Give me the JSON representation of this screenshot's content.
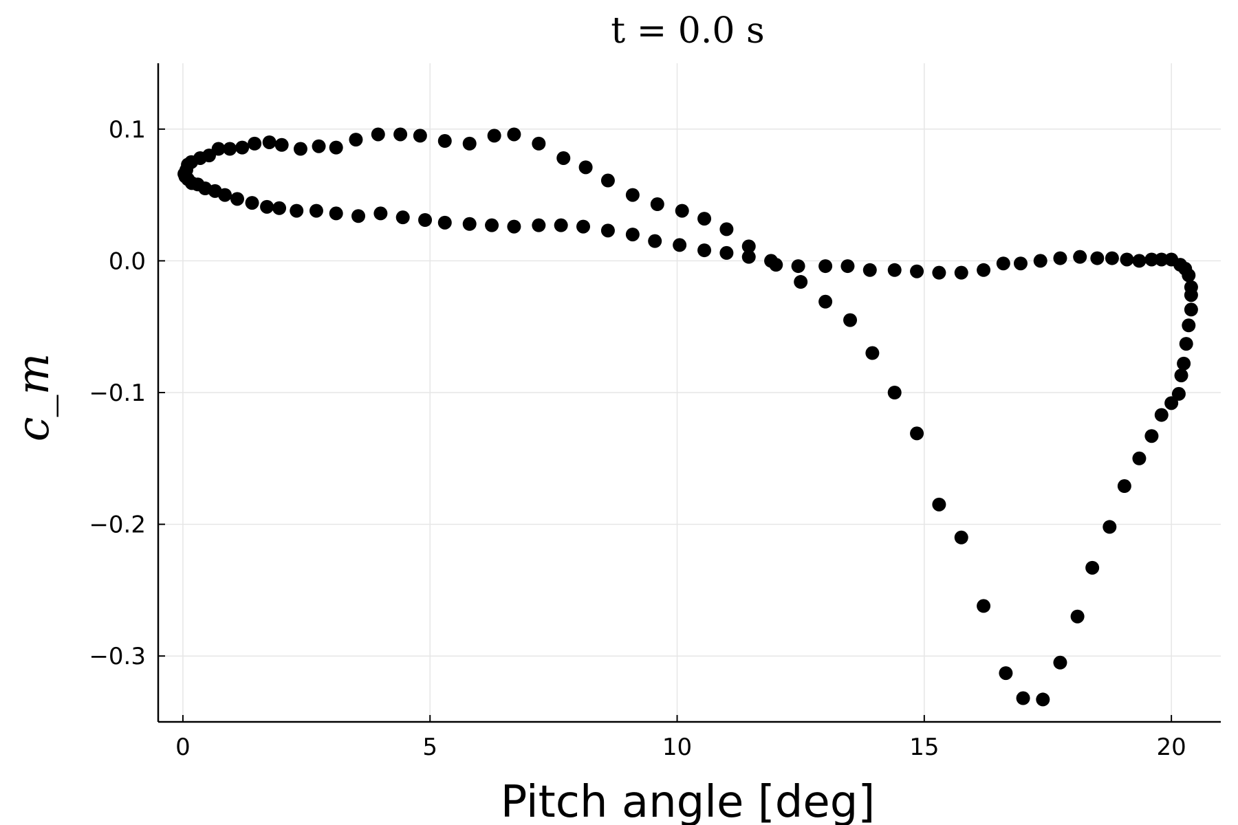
{
  "chart_data": {
    "type": "scatter",
    "title": "t = 0.0 s",
    "xlabel": "Pitch angle [deg]",
    "ylabel": "c_m",
    "xlim": [
      -0.5,
      21.0
    ],
    "ylim": [
      -0.35,
      0.15
    ],
    "xticks": [
      0,
      5,
      10,
      15,
      20
    ],
    "xtick_labels": [
      "0",
      "5",
      "10",
      "15",
      "20"
    ],
    "yticks": [
      0.1,
      0.0,
      -0.1,
      -0.2,
      -0.3
    ],
    "ytick_labels": [
      "0.1",
      "0.0",
      "−0.1",
      "−0.2",
      "−0.3"
    ],
    "grid": true,
    "legend": "none",
    "marker_color": "#000000",
    "series": [
      {
        "x": [
          0.03,
          0.07,
          0.1,
          0.17,
          0.35,
          0.53,
          0.72,
          0.95,
          1.2,
          1.45,
          1.75,
          2.0,
          2.38,
          2.75,
          3.1,
          3.5,
          3.95,
          4.4,
          4.8,
          5.3,
          5.8,
          6.3,
          6.7,
          7.2,
          7.7,
          8.15,
          8.6,
          9.1,
          9.6,
          10.1,
          10.55,
          11.0,
          11.45,
          12.0,
          12.5,
          13.0,
          13.5,
          13.95,
          14.4,
          14.85,
          15.3,
          15.75,
          16.2,
          16.65,
          17.0,
          17.4,
          17.75,
          18.1,
          18.4,
          18.75,
          19.05,
          19.35,
          19.6,
          19.8,
          20.0,
          20.15,
          20.2,
          20.25,
          20.3,
          20.35,
          20.4,
          20.4,
          20.4,
          20.35,
          20.28,
          20.18,
          20.0,
          19.8,
          19.6,
          19.35,
          19.1,
          18.8,
          18.5,
          18.15,
          17.75,
          17.35,
          16.95,
          16.6,
          16.2,
          15.75,
          15.3,
          14.85,
          14.4,
          13.9,
          13.45,
          13.0,
          12.45,
          11.9,
          11.45,
          11.0,
          10.55,
          10.05,
          9.55,
          9.1,
          8.6,
          8.1,
          7.65,
          7.2,
          6.7,
          6.25,
          5.8,
          5.3,
          4.9,
          4.45,
          4.0,
          3.55,
          3.1,
          2.7,
          2.3,
          1.95,
          1.7,
          1.4,
          1.1,
          0.85,
          0.65,
          0.45,
          0.3,
          0.18,
          0.1,
          0.05
        ],
        "y": [
          0.066,
          0.069,
          0.073,
          0.075,
          0.078,
          0.08,
          0.085,
          0.085,
          0.086,
          0.089,
          0.09,
          0.088,
          0.085,
          0.087,
          0.086,
          0.092,
          0.096,
          0.096,
          0.095,
          0.091,
          0.089,
          0.095,
          0.096,
          0.089,
          0.078,
          0.071,
          0.061,
          0.05,
          0.043,
          0.038,
          0.032,
          0.024,
          0.011,
          -0.003,
          -0.016,
          -0.031,
          -0.045,
          -0.07,
          -0.1,
          -0.131,
          -0.185,
          -0.21,
          -0.262,
          -0.313,
          -0.332,
          -0.333,
          -0.305,
          -0.27,
          -0.233,
          -0.202,
          -0.171,
          -0.15,
          -0.133,
          -0.117,
          -0.108,
          -0.101,
          -0.087,
          -0.078,
          -0.063,
          -0.049,
          -0.037,
          -0.026,
          -0.02,
          -0.011,
          -0.006,
          -0.003,
          0.001,
          0.001,
          0.001,
          0.0,
          0.001,
          0.002,
          0.002,
          0.003,
          0.002,
          0.0,
          -0.002,
          -0.002,
          -0.007,
          -0.009,
          -0.009,
          -0.008,
          -0.007,
          -0.007,
          -0.004,
          -0.004,
          -0.004,
          0.0,
          0.003,
          0.006,
          0.008,
          0.012,
          0.015,
          0.02,
          0.023,
          0.026,
          0.027,
          0.027,
          0.026,
          0.027,
          0.028,
          0.029,
          0.031,
          0.033,
          0.036,
          0.034,
          0.036,
          0.038,
          0.038,
          0.04,
          0.041,
          0.044,
          0.047,
          0.05,
          0.053,
          0.055,
          0.058,
          0.059,
          0.062,
          0.064
        ]
      }
    ]
  }
}
